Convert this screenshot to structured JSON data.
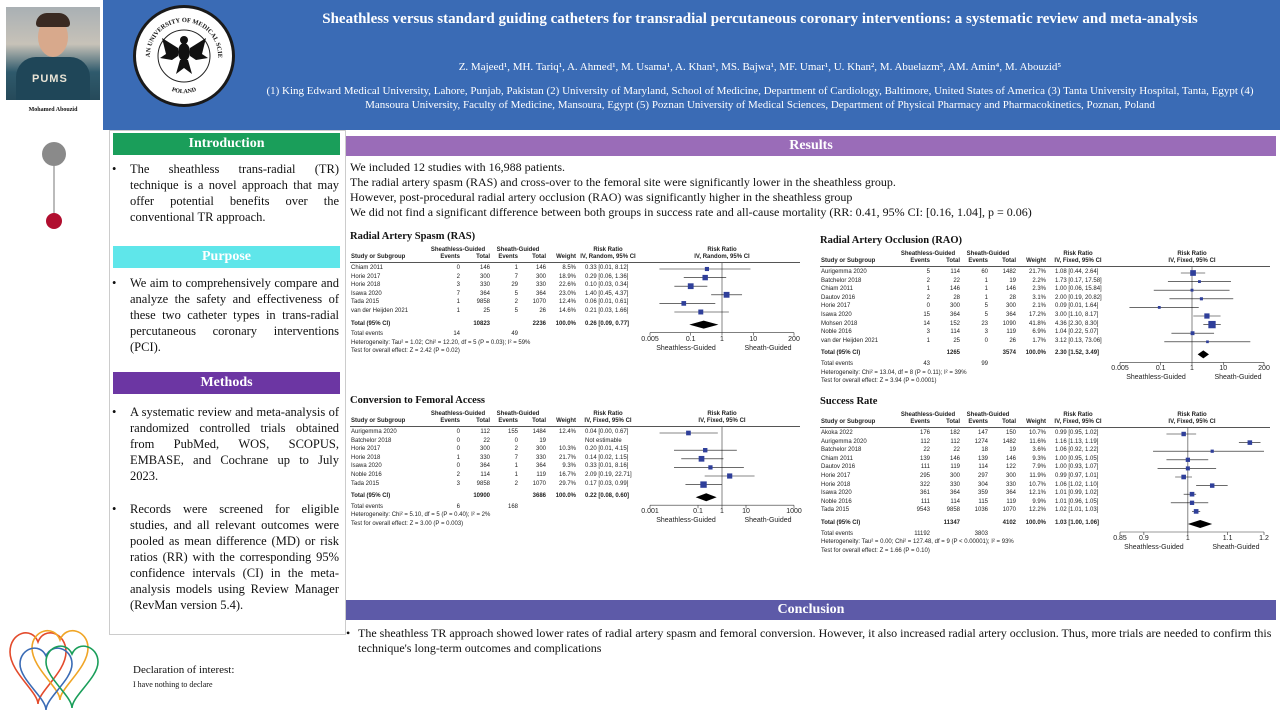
{
  "header": {
    "title": "Sheathless versus standard guiding catheters for transradial percutaneous coronary interventions: a systematic review and meta-analysis",
    "authors": "Z. Majeed¹, MH. Tariq¹, A. Ahmed¹, M. Usama¹, A. Khan¹, MS. Bajwa¹, MF. Umar¹, U. Khan², M. Abuelazm³, AM. Amin⁴, M. Abouzid⁵",
    "affiliations": "(1) King Edward Medical University, Lahore, Punjab, Pakistan (2) University of Maryland, School of Medicine, Department of Cardiology, Baltimore, United States of America (3) Tanta University Hospital, Tanta, Egypt (4) Mansoura University, Faculty of Medicine, Mansoura, Egypt (5) Poznan University of Medical Sciences, Department of Physical Pharmacy and Pharmacokinetics, Poznan, Poland",
    "logo_text": "POZNAN UNIVERSITY OF MEDICAL SCIENCES",
    "logo_bottom": "POLAND"
  },
  "presenter": {
    "name": "Mohamed Abouzid",
    "shirt_text": "PUMS"
  },
  "colors": {
    "header": "#3a6bb5",
    "intro": "#1a9e5a",
    "purpose": "#5fe6ea",
    "methods": "#6c36a3",
    "results": "#9a6cb8",
    "conclusion": "#5d5aa8"
  },
  "introduction": {
    "heading": "Introduction",
    "text": "The sheathless trans-radial (TR) technique is a novel approach that may offer potential benefits over the conventional TR approach."
  },
  "purpose": {
    "heading": "Purpose",
    "text": "We aim to comprehensively compare and analyze the safety and effectiveness of these two catheter types in trans-radial percutaneous coronary interventions (PCI)."
  },
  "methods": {
    "heading": "Methods",
    "text1": "A systematic review and meta-analysis of randomized controlled trials obtained from PubMed, WOS, SCOPUS, EMBASE, and Cochrane up to July 2023.",
    "text2": "Records were screened for eligible studies, and all relevant outcomes were pooled as mean difference (MD) or risk ratios (RR) with the corresponding 95% confidence intervals (CI) in the meta-analysis models using Review Manager (RevMan version 5.4)."
  },
  "results": {
    "heading": "Results",
    "lines": [
      "We included 12 studies with 16,988 patients.",
      "The radial artery spasm (RAS) and cross-over to the femoral site were significantly lower in the sheathless group.",
      "However, post-procedural radial artery occlusion (RAO) was significantly higher in the sheathless group",
      "We did not find a significant difference between both groups in success rate and all-cause mortality (RR: 0.41, 95% CI: [0.16, 1.04], p = 0.06)"
    ]
  },
  "chart_data": [
    {
      "type": "forest",
      "title": "Radial Artery Spasm (RAS)",
      "group_headers": [
        "Sheathless-Guided",
        "Sheath-Guided",
        "Risk Ratio",
        "Risk Ratio"
      ],
      "columns": [
        "Study or Subgroup",
        "Events",
        "Total",
        "Events",
        "Total",
        "Weight",
        "IV, Random, 95% CI",
        "IV, Random, 95% CI"
      ],
      "log_scale": true,
      "xlim": [
        0.005,
        200
      ],
      "ticks": [
        "0.005",
        "0.1",
        "1",
        "10",
        "200"
      ],
      "tick_values": [
        0.005,
        0.1,
        1,
        10,
        200
      ],
      "favours": [
        "Sheathless-Guided",
        "Sheath-Guided"
      ],
      "studies": [
        {
          "name": "Chiam 2011",
          "e1": "0",
          "t1": "146",
          "e2": "1",
          "t2": "146",
          "w": "8.5%",
          "ci": "0.33 [0.01, 8.12]",
          "rr": 0.33,
          "lo": 0.01,
          "hi": 8.12
        },
        {
          "name": "Horie 2017",
          "e1": "2",
          "t1": "300",
          "e2": "7",
          "t2": "300",
          "w": "18.9%",
          "ci": "0.29 [0.06, 1.36]",
          "rr": 0.29,
          "lo": 0.06,
          "hi": 1.36
        },
        {
          "name": "Horie 2018",
          "e1": "3",
          "t1": "330",
          "e2": "29",
          "t2": "330",
          "w": "22.6%",
          "ci": "0.10 [0.03, 0.34]",
          "rr": 0.1,
          "lo": 0.03,
          "hi": 0.34
        },
        {
          "name": "Isawa 2020",
          "e1": "7",
          "t1": "364",
          "e2": "5",
          "t2": "364",
          "w": "23.0%",
          "ci": "1.40 [0.45, 4.37]",
          "rr": 1.4,
          "lo": 0.45,
          "hi": 4.37
        },
        {
          "name": "Tada 2015",
          "e1": "1",
          "t1": "9858",
          "e2": "2",
          "t2": "1070",
          "w": "12.4%",
          "ci": "0.06 [0.01, 0.61]",
          "rr": 0.06,
          "lo": 0.01,
          "hi": 0.61
        },
        {
          "name": "van der Heijden 2021",
          "e1": "1",
          "t1": "25",
          "e2": "5",
          "t2": "26",
          "w": "14.6%",
          "ci": "0.21 [0.03, 1.66]",
          "rr": 0.21,
          "lo": 0.03,
          "hi": 1.66
        }
      ],
      "total": {
        "name": "Total (95% CI)",
        "t1": "10823",
        "t2": "2236",
        "w": "100.0%",
        "ci": "0.26 [0.09, 0.77]",
        "rr": 0.26,
        "lo": 0.09,
        "hi": 0.77
      },
      "total_events": {
        "name": "Total events",
        "e1": "14",
        "e2": "49"
      },
      "heterogeneity": "Heterogeneity: Tau² = 1.02; Chi² = 12.20, df = 5 (P = 0.03); I² = 59%",
      "overall": "Test for overall effect: Z = 2.42 (P = 0.02)"
    },
    {
      "type": "forest",
      "title": "Conversion to Femoral Access",
      "group_headers": [
        "Sheathless-Guided",
        "Sheath-Guided",
        "Risk Ratio",
        "Risk Ratio"
      ],
      "columns": [
        "Study or Subgroup",
        "Events",
        "Total",
        "Events",
        "Total",
        "Weight",
        "IV, Fixed, 95% CI",
        "IV, Fixed, 95% CI"
      ],
      "log_scale": true,
      "xlim": [
        0.001,
        1000
      ],
      "ticks": [
        "0.001",
        "0.1",
        "1",
        "10",
        "1000"
      ],
      "tick_values": [
        0.001,
        0.1,
        1,
        10,
        1000
      ],
      "favours": [
        "Sheathless-Guided",
        "Sheath-Guided"
      ],
      "studies": [
        {
          "name": "Aurigemma 2020",
          "e1": "0",
          "t1": "112",
          "e2": "155",
          "t2": "1484",
          "w": "12.4%",
          "ci": "0.04 [0.00, 0.67]",
          "rr": 0.04,
          "lo": 0.0025,
          "hi": 0.67
        },
        {
          "name": "Batchelor 2018",
          "e1": "0",
          "t1": "22",
          "e2": "0",
          "t2": "19",
          "w": "",
          "ci": "Not estimable"
        },
        {
          "name": "Horie 2017",
          "e1": "0",
          "t1": "300",
          "e2": "2",
          "t2": "300",
          "w": "10.3%",
          "ci": "0.20 [0.01, 4.15]",
          "rr": 0.2,
          "lo": 0.01,
          "hi": 4.15
        },
        {
          "name": "Horie 2018",
          "e1": "1",
          "t1": "330",
          "e2": "7",
          "t2": "330",
          "w": "21.7%",
          "ci": "0.14 [0.02, 1.15]",
          "rr": 0.14,
          "lo": 0.02,
          "hi": 1.15
        },
        {
          "name": "Isawa 2020",
          "e1": "0",
          "t1": "364",
          "e2": "1",
          "t2": "364",
          "w": "9.3%",
          "ci": "0.33 [0.01, 8.16]",
          "rr": 0.33,
          "lo": 0.01,
          "hi": 8.16
        },
        {
          "name": "Noble 2016",
          "e1": "2",
          "t1": "114",
          "e2": "1",
          "t2": "119",
          "w": "16.7%",
          "ci": "2.09 [0.19, 22.71]",
          "rr": 2.09,
          "lo": 0.19,
          "hi": 22.71
        },
        {
          "name": "Tada 2015",
          "e1": "3",
          "t1": "9858",
          "e2": "2",
          "t2": "1070",
          "w": "29.7%",
          "ci": "0.17 [0.03, 0.99]",
          "rr": 0.17,
          "lo": 0.03,
          "hi": 0.99
        }
      ],
      "total": {
        "name": "Total (95% CI)",
        "t1": "10900",
        "t2": "3686",
        "w": "100.0%",
        "ci": "0.22 [0.08, 0.60]",
        "rr": 0.22,
        "lo": 0.08,
        "hi": 0.6
      },
      "total_events": {
        "name": "Total events",
        "e1": "6",
        "e2": "168"
      },
      "heterogeneity": "Heterogeneity: Chi² = 5.10, df = 5 (P = 0.40); I² = 2%",
      "overall": "Test for overall effect: Z = 3.00 (P = 0.003)"
    },
    {
      "type": "forest",
      "title": "Radial Artery Occlusion (RAO)",
      "group_headers": [
        "Sheathless-Guided",
        "Sheath-Guided",
        "Risk Ratio",
        "Risk Ratio"
      ],
      "columns": [
        "Study or Subgroup",
        "Events",
        "Total",
        "Events",
        "Total",
        "Weight",
        "IV, Fixed, 95% CI",
        "IV, Fixed, 95% CI"
      ],
      "log_scale": true,
      "xlim": [
        0.005,
        200
      ],
      "ticks": [
        "0.005",
        "0.1",
        "1",
        "10",
        "200"
      ],
      "tick_values": [
        0.005,
        0.1,
        1,
        10,
        200
      ],
      "favours": [
        "Sheathless-Guided",
        "Sheath-Guided"
      ],
      "studies": [
        {
          "name": "Aurigemma 2020",
          "e1": "5",
          "t1": "114",
          "e2": "60",
          "t2": "1482",
          "w": "21.7%",
          "ci": "1.08 [0.44, 2.64]",
          "rr": 1.08,
          "lo": 0.44,
          "hi": 2.64
        },
        {
          "name": "Batchelor 2018",
          "e1": "2",
          "t1": "22",
          "e2": "1",
          "t2": "19",
          "w": "2.2%",
          "ci": "1.73 [0.17, 17.58]",
          "rr": 1.73,
          "lo": 0.17,
          "hi": 17.58
        },
        {
          "name": "Chiam 2011",
          "e1": "1",
          "t1": "146",
          "e2": "1",
          "t2": "146",
          "w": "2.3%",
          "ci": "1.00 [0.06, 15.84]",
          "rr": 1.0,
          "lo": 0.06,
          "hi": 15.84
        },
        {
          "name": "Dautov 2016",
          "e1": "2",
          "t1": "28",
          "e2": "1",
          "t2": "28",
          "w": "3.1%",
          "ci": "2.00 [0.19, 20.82]",
          "rr": 2.0,
          "lo": 0.19,
          "hi": 20.82
        },
        {
          "name": "Horie 2017",
          "e1": "0",
          "t1": "300",
          "e2": "5",
          "t2": "300",
          "w": "2.1%",
          "ci": "0.09 [0.01, 1.64]",
          "rr": 0.09,
          "lo": 0.01,
          "hi": 1.64
        },
        {
          "name": "Isawa 2020",
          "e1": "15",
          "t1": "364",
          "e2": "5",
          "t2": "364",
          "w": "17.2%",
          "ci": "3.00 [1.10, 8.17]",
          "rr": 3.0,
          "lo": 1.1,
          "hi": 8.17
        },
        {
          "name": "Mohsen 2018",
          "e1": "14",
          "t1": "152",
          "e2": "23",
          "t2": "1090",
          "w": "41.8%",
          "ci": "4.36 [2.30, 8.30]",
          "rr": 4.36,
          "lo": 2.3,
          "hi": 8.3
        },
        {
          "name": "Noble 2016",
          "e1": "3",
          "t1": "114",
          "e2": "3",
          "t2": "119",
          "w": "6.9%",
          "ci": "1.04 [0.22, 5.07]",
          "rr": 1.04,
          "lo": 0.22,
          "hi": 5.07
        },
        {
          "name": "van der Heijden 2021",
          "e1": "1",
          "t1": "25",
          "e2": "0",
          "t2": "26",
          "w": "1.7%",
          "ci": "3.12 [0.13, 73.06]",
          "rr": 3.12,
          "lo": 0.13,
          "hi": 73.06
        }
      ],
      "total": {
        "name": "Total (95% CI)",
        "t1": "1265",
        "t2": "3574",
        "w": "100.0%",
        "ci": "2.30 [1.52, 3.49]",
        "rr": 2.3,
        "lo": 1.52,
        "hi": 3.49
      },
      "total_events": {
        "name": "Total events",
        "e1": "43",
        "e2": "99"
      },
      "heterogeneity": "Heterogeneity: Chi² = 13.04, df = 8 (P = 0.11); I² = 39%",
      "overall": "Test for overall effect: Z = 3.94 (P = 0.0001)"
    },
    {
      "type": "forest",
      "title": "Success Rate",
      "group_headers": [
        "Sheathless-Guided",
        "Sheath-Guided",
        "Risk Ratio",
        "Risk Ratio"
      ],
      "columns": [
        "Study or Subgroup",
        "Events",
        "Total",
        "Events",
        "Total",
        "Weight",
        "IV, Fixed, 95% CI",
        "IV, Fixed, 95% CI"
      ],
      "log_scale": true,
      "xlim": [
        0.85,
        1.2
      ],
      "ticks": [
        "0.85",
        "0.9",
        "1",
        "1.1",
        "1.2"
      ],
      "tick_values": [
        0.85,
        0.9,
        1,
        1.1,
        1.2
      ],
      "favours": [
        "Sheathless-Guided",
        "Sheath-Guided"
      ],
      "studies": [
        {
          "name": "Akoka 2022",
          "e1": "176",
          "t1": "182",
          "e2": "147",
          "t2": "150",
          "w": "10.7%",
          "ci": "0.99 [0.95, 1.02]",
          "rr": 0.99,
          "lo": 0.95,
          "hi": 1.02
        },
        {
          "name": "Aurigemma 2020",
          "e1": "112",
          "t1": "112",
          "e2": "1274",
          "t2": "1482",
          "w": "11.6%",
          "ci": "1.16 [1.13, 1.19]",
          "rr": 1.16,
          "lo": 1.13,
          "hi": 1.19
        },
        {
          "name": "Batchelor 2018",
          "e1": "22",
          "t1": "22",
          "e2": "18",
          "t2": "19",
          "w": "3.6%",
          "ci": "1.06 [0.92, 1.22]",
          "rr": 1.06,
          "lo": 0.92,
          "hi": 1.22
        },
        {
          "name": "Chiam 2011",
          "e1": "139",
          "t1": "146",
          "e2": "139",
          "t2": "146",
          "w": "9.3%",
          "ci": "1.00 [0.95, 1.05]",
          "rr": 1.0,
          "lo": 0.95,
          "hi": 1.05
        },
        {
          "name": "Dautov 2016",
          "e1": "111",
          "t1": "119",
          "e2": "114",
          "t2": "122",
          "w": "7.9%",
          "ci": "1.00 [0.93, 1.07]",
          "rr": 1.0,
          "lo": 0.93,
          "hi": 1.07
        },
        {
          "name": "Horie 2017",
          "e1": "295",
          "t1": "300",
          "e2": "297",
          "t2": "300",
          "w": "11.9%",
          "ci": "0.99 [0.97, 1.01]",
          "rr": 0.99,
          "lo": 0.97,
          "hi": 1.01
        },
        {
          "name": "Horie 2018",
          "e1": "322",
          "t1": "330",
          "e2": "304",
          "t2": "330",
          "w": "10.7%",
          "ci": "1.06 [1.02, 1.10]",
          "rr": 1.06,
          "lo": 1.02,
          "hi": 1.1
        },
        {
          "name": "Isawa 2020",
          "e1": "361",
          "t1": "364",
          "e2": "359",
          "t2": "364",
          "w": "12.1%",
          "ci": "1.01 [0.99, 1.02]",
          "rr": 1.01,
          "lo": 0.99,
          "hi": 1.02
        },
        {
          "name": "Noble 2016",
          "e1": "111",
          "t1": "114",
          "e2": "115",
          "t2": "119",
          "w": "9.9%",
          "ci": "1.01 [0.96, 1.05]",
          "rr": 1.01,
          "lo": 0.96,
          "hi": 1.05
        },
        {
          "name": "Tada 2015",
          "e1": "9543",
          "t1": "9858",
          "e2": "1036",
          "t2": "1070",
          "w": "12.2%",
          "ci": "1.02 [1.01, 1.03]",
          "rr": 1.02,
          "lo": 1.01,
          "hi": 1.03
        }
      ],
      "total": {
        "name": "Total (95% CI)",
        "t1": "11347",
        "t2": "4102",
        "w": "100.0%",
        "ci": "1.03 [1.00, 1.06]",
        "rr": 1.03,
        "lo": 1.0,
        "hi": 1.06
      },
      "total_events": {
        "name": "Total events",
        "e1": "11192",
        "e2": "3803"
      },
      "heterogeneity": "Heterogeneity: Tau² = 0.00; Chi² = 127.48, df = 9 (P < 0.00001); I² = 93%",
      "overall": "Test for overall effect: Z = 1.66 (P = 0.10)"
    }
  ],
  "conclusion": {
    "heading": "Conclusion",
    "text": "The sheathless TR approach showed lower rates of radial artery spasm and femoral conversion. However, it also increased radial artery occlusion. Thus, more trials are needed to confirm this technique's long-term outcomes and complications"
  },
  "declaration": {
    "heading": "Declaration of interest:",
    "text": "I have nothing to declare"
  }
}
